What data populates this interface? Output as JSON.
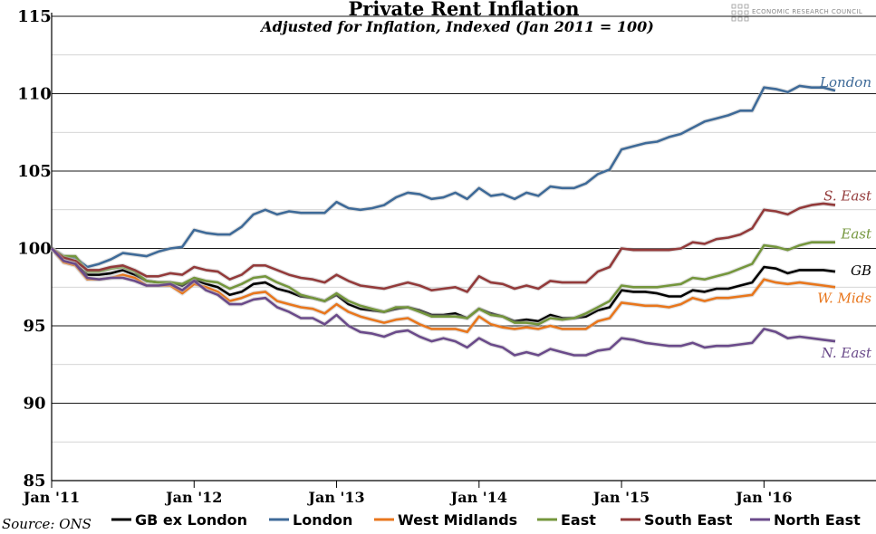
{
  "brand": {
    "name": "ECONOMIC RESEARCH COUNCIL"
  },
  "source": "Source: ONS",
  "chart_data": {
    "type": "line",
    "title": "Private Rent Inflation",
    "subtitle": "Adjusted for Inflation, Indexed (Jan 2011 = 100)",
    "xlabel": "",
    "ylabel": "",
    "ylim": [
      85,
      115
    ],
    "yticks": [
      "85",
      "90",
      "95",
      "100",
      "105",
      "110",
      "115"
    ],
    "xticks": [
      "Jan '11",
      "Jan '12",
      "Jan '13",
      "Jan '14",
      "Jan '15",
      "Jan '16"
    ],
    "x_start": "Jan 2011",
    "x_end": "Jul 2016",
    "grid": true,
    "legend_position": "bottom",
    "x": [
      "Jan 2011",
      "Feb 2011",
      "Mar 2011",
      "Apr 2011",
      "May 2011",
      "Jun 2011",
      "Jul 2011",
      "Aug 2011",
      "Sep 2011",
      "Oct 2011",
      "Nov 2011",
      "Dec 2011",
      "Jan 2012",
      "Feb 2012",
      "Mar 2012",
      "Apr 2012",
      "May 2012",
      "Jun 2012",
      "Jul 2012",
      "Aug 2012",
      "Sep 2012",
      "Oct 2012",
      "Nov 2012",
      "Dec 2012",
      "Jan 2013",
      "Feb 2013",
      "Mar 2013",
      "Apr 2013",
      "May 2013",
      "Jun 2013",
      "Jul 2013",
      "Aug 2013",
      "Sep 2013",
      "Oct 2013",
      "Nov 2013",
      "Dec 2013",
      "Jan 2014",
      "Feb 2014",
      "Mar 2014",
      "Apr 2014",
      "May 2014",
      "Jun 2014",
      "Jul 2014",
      "Aug 2014",
      "Sep 2014",
      "Oct 2014",
      "Nov 2014",
      "Dec 2014",
      "Jan 2015",
      "Feb 2015",
      "Mar 2015",
      "Apr 2015",
      "May 2015",
      "Jun 2015",
      "Jul 2015",
      "Aug 2015",
      "Sep 2015",
      "Oct 2015",
      "Nov 2015",
      "Dec 2015",
      "Jan 2016",
      "Feb 2016",
      "Mar 2016",
      "Apr 2016",
      "May 2016",
      "Jun 2016",
      "Jul 2016"
    ],
    "series": [
      {
        "name": "GB ex London",
        "end_label": "GB",
        "color": "#000000",
        "values": [
          100.0,
          99.2,
          99.0,
          98.3,
          98.3,
          98.4,
          98.6,
          98.3,
          97.9,
          97.8,
          97.8,
          97.6,
          98.0,
          97.7,
          97.5,
          97.0,
          97.2,
          97.7,
          97.8,
          97.4,
          97.2,
          96.9,
          96.8,
          96.6,
          97.0,
          96.4,
          96.1,
          96.0,
          95.9,
          96.1,
          96.2,
          96.0,
          95.7,
          95.7,
          95.8,
          95.5,
          96.1,
          95.8,
          95.6,
          95.3,
          95.4,
          95.3,
          95.7,
          95.5,
          95.5,
          95.6,
          96.0,
          96.2,
          97.3,
          97.2,
          97.2,
          97.1,
          96.9,
          96.9,
          97.3,
          97.2,
          97.4,
          97.4,
          97.6,
          97.8,
          98.8,
          98.7,
          98.4,
          98.6,
          98.6,
          98.6,
          98.5
        ]
      },
      {
        "name": "London",
        "end_label": "London",
        "color": "#3e6a98",
        "values": [
          100.0,
          99.5,
          99.4,
          98.8,
          99.0,
          99.3,
          99.7,
          99.6,
          99.5,
          99.8,
          100.0,
          100.1,
          101.2,
          101.0,
          100.9,
          100.9,
          101.4,
          102.2,
          102.5,
          102.2,
          102.4,
          102.3,
          102.3,
          102.3,
          103.0,
          102.6,
          102.5,
          102.6,
          102.8,
          103.3,
          103.6,
          103.5,
          103.2,
          103.3,
          103.6,
          103.2,
          103.9,
          103.4,
          103.5,
          103.2,
          103.6,
          103.4,
          104.0,
          103.9,
          103.9,
          104.2,
          104.8,
          105.1,
          106.4,
          106.6,
          106.8,
          106.9,
          107.2,
          107.4,
          107.8,
          108.2,
          108.4,
          108.6,
          108.9,
          108.9,
          110.4,
          110.3,
          110.1,
          110.5,
          110.4,
          110.4,
          110.2
        ]
      },
      {
        "name": "West Midlands",
        "end_label": "W. Mids",
        "color": "#e8761c",
        "values": [
          100.0,
          99.1,
          98.9,
          98.0,
          98.0,
          98.1,
          98.3,
          98.1,
          97.6,
          97.6,
          97.6,
          97.1,
          97.7,
          97.5,
          97.2,
          96.6,
          96.8,
          97.1,
          97.2,
          96.6,
          96.4,
          96.2,
          96.1,
          95.8,
          96.4,
          95.9,
          95.6,
          95.4,
          95.2,
          95.4,
          95.5,
          95.1,
          94.8,
          94.8,
          94.8,
          94.6,
          95.6,
          95.1,
          94.9,
          94.8,
          94.9,
          94.8,
          95.0,
          94.8,
          94.8,
          94.8,
          95.3,
          95.5,
          96.5,
          96.4,
          96.3,
          96.3,
          96.2,
          96.4,
          96.8,
          96.6,
          96.8,
          96.8,
          96.9,
          97.0,
          98.0,
          97.8,
          97.7,
          97.8,
          97.7,
          97.6,
          97.5
        ]
      },
      {
        "name": "East",
        "end_label": "East",
        "color": "#74963c",
        "values": [
          100.0,
          99.5,
          99.5,
          98.5,
          98.5,
          98.7,
          98.8,
          98.5,
          97.9,
          97.8,
          97.8,
          97.7,
          98.1,
          97.9,
          97.8,
          97.4,
          97.7,
          98.1,
          98.2,
          97.8,
          97.5,
          97.0,
          96.8,
          96.6,
          97.1,
          96.6,
          96.3,
          96.1,
          95.9,
          96.2,
          96.2,
          95.9,
          95.6,
          95.6,
          95.6,
          95.5,
          96.1,
          95.7,
          95.6,
          95.2,
          95.2,
          95.1,
          95.5,
          95.4,
          95.5,
          95.8,
          96.2,
          96.6,
          97.6,
          97.5,
          97.5,
          97.5,
          97.6,
          97.7,
          98.1,
          98.0,
          98.2,
          98.4,
          98.7,
          99.0,
          100.2,
          100.1,
          99.9,
          100.2,
          100.4,
          100.4,
          100.4
        ]
      },
      {
        "name": "South East",
        "end_label": "S. East",
        "color": "#933a3a",
        "values": [
          100.0,
          99.4,
          99.2,
          98.6,
          98.6,
          98.8,
          98.9,
          98.6,
          98.2,
          98.2,
          98.4,
          98.3,
          98.8,
          98.6,
          98.5,
          98.0,
          98.3,
          98.9,
          98.9,
          98.6,
          98.3,
          98.1,
          98.0,
          97.8,
          98.3,
          97.9,
          97.6,
          97.5,
          97.4,
          97.6,
          97.8,
          97.6,
          97.3,
          97.4,
          97.5,
          97.2,
          98.2,
          97.8,
          97.7,
          97.4,
          97.6,
          97.4,
          97.9,
          97.8,
          97.8,
          97.8,
          98.5,
          98.8,
          100.0,
          99.9,
          99.9,
          99.9,
          99.9,
          100.0,
          100.4,
          100.3,
          100.6,
          100.7,
          100.9,
          101.3,
          102.5,
          102.4,
          102.2,
          102.6,
          102.8,
          102.9,
          102.8
        ]
      },
      {
        "name": "North East",
        "end_label": "N. East",
        "color": "#6a4a8a",
        "values": [
          100.0,
          99.2,
          99.0,
          98.1,
          98.0,
          98.1,
          98.1,
          97.9,
          97.6,
          97.6,
          97.7,
          97.3,
          97.9,
          97.3,
          97.0,
          96.4,
          96.4,
          96.7,
          96.8,
          96.2,
          95.9,
          95.5,
          95.5,
          95.1,
          95.7,
          95.0,
          94.6,
          94.5,
          94.3,
          94.6,
          94.7,
          94.3,
          94.0,
          94.2,
          94.0,
          93.6,
          94.2,
          93.8,
          93.6,
          93.1,
          93.3,
          93.1,
          93.5,
          93.3,
          93.1,
          93.1,
          93.4,
          93.5,
          94.2,
          94.1,
          93.9,
          93.8,
          93.7,
          93.7,
          93.9,
          93.6,
          93.7,
          93.7,
          93.8,
          93.9,
          94.8,
          94.6,
          94.2,
          94.3,
          94.2,
          94.1,
          94.0
        ]
      }
    ]
  }
}
